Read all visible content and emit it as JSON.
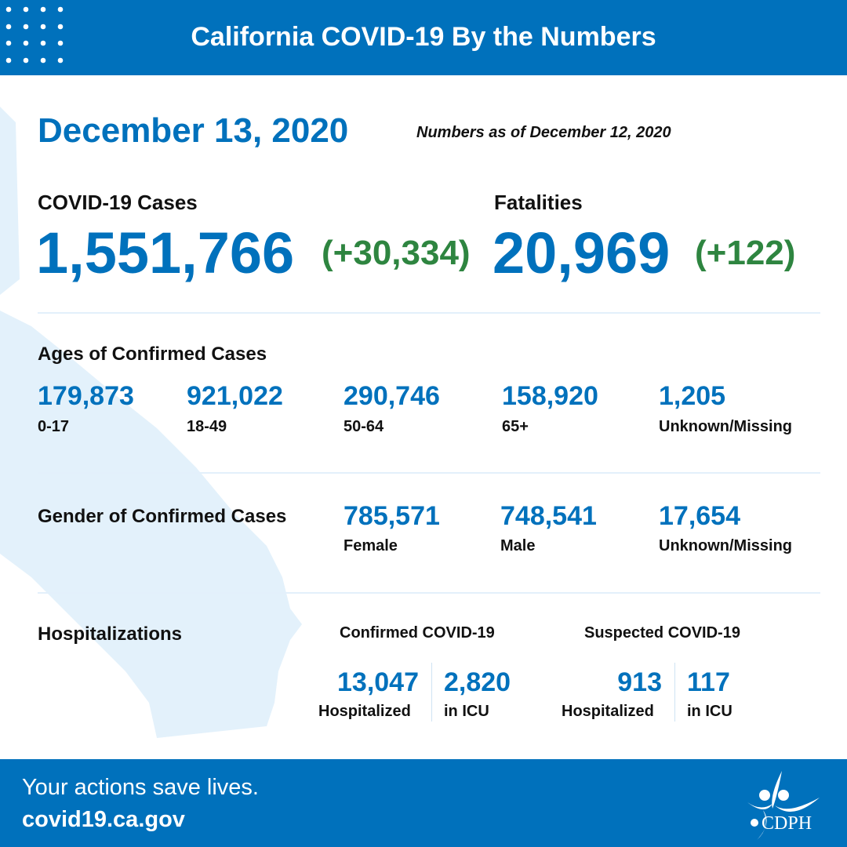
{
  "header": {
    "title": "California COVID-19 By the Numbers"
  },
  "date": "December 13, 2020",
  "as_of": "Numbers as of December 12, 2020",
  "cases": {
    "label": "COVID-19 Cases",
    "total": "1,551,766",
    "change": "(+30,334)"
  },
  "fatalities": {
    "label": "Fatalities",
    "total": "20,969",
    "change": "(+122)"
  },
  "ages": {
    "title": "Ages of Confirmed Cases",
    "items": [
      {
        "value": "179,873",
        "label": "0-17"
      },
      {
        "value": "921,022",
        "label": "18-49"
      },
      {
        "value": "290,746",
        "label": "50-64"
      },
      {
        "value": "158,920",
        "label": "65+"
      },
      {
        "value": "1,205",
        "label": "Unknown/Missing"
      }
    ]
  },
  "gender": {
    "title": "Gender of Confirmed Cases",
    "items": [
      {
        "value": "785,571",
        "label": "Female"
      },
      {
        "value": "748,541",
        "label": "Male"
      },
      {
        "value": "17,654",
        "label": "Unknown/Missing"
      }
    ]
  },
  "hosp": {
    "title": "Hospitalizations",
    "confirmed": {
      "title": "Confirmed COVID-19",
      "hospitalized": "13,047",
      "hosp_label": "Hospitalized",
      "icu": "2,820",
      "icu_label": "in ICU"
    },
    "suspected": {
      "title": "Suspected COVID-19",
      "hospitalized": "913",
      "hosp_label": "Hospitalized",
      "icu": "117",
      "icu_label": "in ICU"
    }
  },
  "footer": {
    "tagline": "Your actions save lives.",
    "url": "covid19.ca.gov",
    "logo_text": "CDPH"
  },
  "colors": {
    "brand": "#0071bc",
    "green": "#2e8540",
    "map": "#e3f1fb"
  }
}
